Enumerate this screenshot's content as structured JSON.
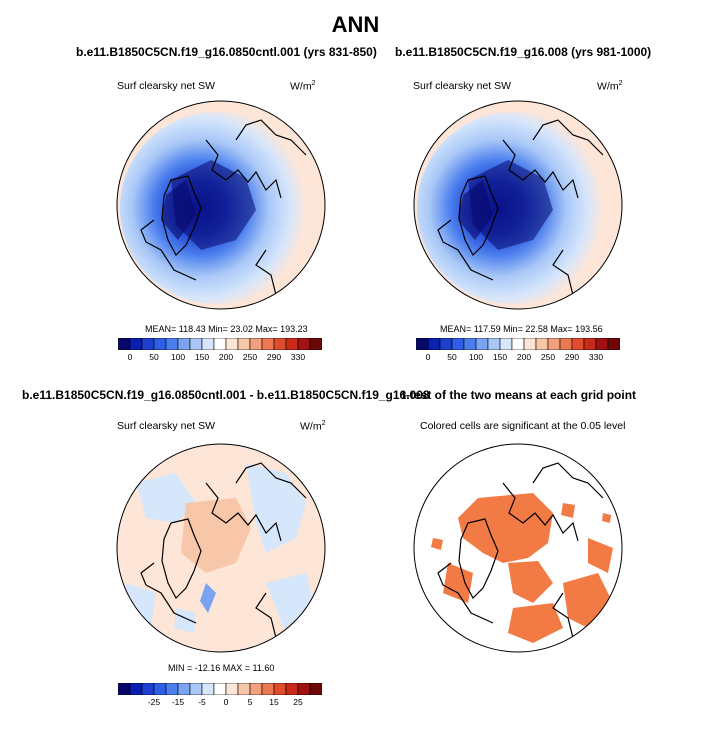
{
  "title": "ANN",
  "panels": [
    {
      "id": "p1",
      "title": "b.e11.B1850C5CN.f19_g16.0850cntl.001 (yrs 831-850)",
      "field": "Surf clearsky net SW",
      "units": "W/m",
      "units_sup": "2",
      "stats": "MEAN= 118.43  Min=  23.02  Max= 193.23"
    },
    {
      "id": "p2",
      "title": "b.e11.B1850C5CN.f19_g16.008 (yrs 981-1000)",
      "field": "Surf clearsky net SW",
      "units": "W/m",
      "units_sup": "2",
      "stats": "MEAN= 117.59  Min=  22.58  Max= 193.56"
    },
    {
      "id": "p3",
      "title": "b.e11.B1850C5CN.f19_g16.0850cntl.001 - b.e11.B1850C5CN.f19_g16.008",
      "field": "Surf clearsky net SW",
      "units": "W/m",
      "units_sup": "2",
      "stats": "MIN = -12.16 MAX =  11.60"
    },
    {
      "id": "p4",
      "title": "t-test of the two means at each grid point",
      "field": "Colored cells are significant at the 0.05 level"
    }
  ],
  "colorbars": {
    "absolute": {
      "labels": [
        "0",
        "50",
        "100",
        "150",
        "200",
        "250",
        "290",
        "330"
      ],
      "colors": [
        "#08086b",
        "#0a1fb0",
        "#1e3fcf",
        "#2f5fe6",
        "#4c7fee",
        "#7aa3f2",
        "#a9c8f7",
        "#d6e6fb",
        "#ffffff",
        "#fde6d8",
        "#f8c6a8",
        "#f3a07e",
        "#ec7851",
        "#df4d2c",
        "#c92a1a",
        "#a01212",
        "#6e0808"
      ]
    },
    "difference": {
      "labels": [
        "-25",
        "-15",
        "-5",
        "0",
        "5",
        "15",
        "25"
      ],
      "colors": [
        "#08086b",
        "#0a1fb0",
        "#1e3fcf",
        "#2f5fe6",
        "#4c7fee",
        "#7aa3f2",
        "#a9c8f7",
        "#d6e6fb",
        "#ffffff",
        "#fde6d8",
        "#f8c6a8",
        "#f3a07e",
        "#ec7851",
        "#df4d2c",
        "#c92a1a",
        "#a01212",
        "#6e0808"
      ]
    }
  }
}
